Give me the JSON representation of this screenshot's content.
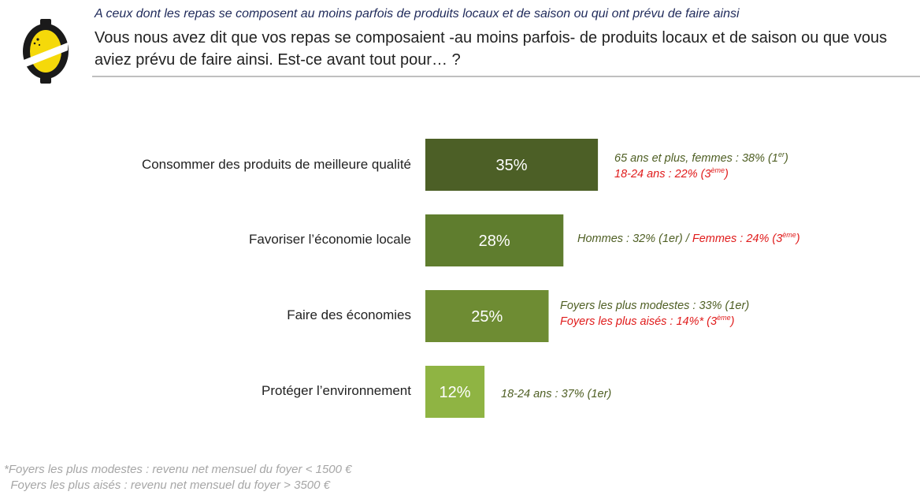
{
  "header": {
    "subtitle": "A ceux dont les repas se composent au moins parfois de produits locaux et de saison ou qui ont prévu de faire ainsi",
    "question": "Vous nous avez dit que vos repas se composaient -au moins parfois- de produits locaux et de saison ou que vous aviez prévu de faire ainsi. Est-ce avant tout pour… ?"
  },
  "logo": {
    "icon": "lemon-logo-icon",
    "colors": {
      "body": "#1a1a1a",
      "fruit": "#f5d90a",
      "band": "#ffffff"
    }
  },
  "colors": {
    "bar_dark": "#4c5f26",
    "bar_mid": "#5f7d2e",
    "bar_light": "#7d9a3a",
    "bar_lightest": "#8fb443",
    "note_dark": "#4f5f24",
    "note_red": "#e01b1b"
  },
  "chart_data": {
    "type": "bar",
    "orientation": "horizontal",
    "categories": [
      "Consommer des produits de meilleure qualité",
      "Favoriser l’économie locale",
      "Faire des économies",
      "Protéger l’environnement"
    ],
    "values": [
      35,
      28,
      25,
      12
    ],
    "value_labels": [
      "35%",
      "28%",
      "25%",
      "12%"
    ],
    "bar_colors": [
      "#4c5f26",
      "#5f7d2e",
      "#6e8c33",
      "#8fb443"
    ],
    "grid": false
  },
  "notes": {
    "n1_line1_main": "65 ans et plus, femmes : 38% (1",
    "n1_line1_sup": "er",
    "n1_line1_end": ")",
    "n1_line2_main": "18-24 ans : 22% (3",
    "n1_line2_sup": "ème",
    "n1_line2_end": ")",
    "n2_part1": "Hommes : 32%  (1er) / ",
    "n2_part2_main": "Femmes : 24% (3",
    "n2_part2_sup": "ème",
    "n2_part2_end": ")",
    "n3_line1": "Foyers les plus modestes : 33% (1er)",
    "n3_line2_main": "Foyers les plus aisés : 14%* (3",
    "n3_line2_sup": "ème",
    "n3_line2_end": ")",
    "n4_line1": "18-24 ans : 37% (1er)"
  },
  "footnote": {
    "line1": "*Foyers les plus modestes : revenu net mensuel du foyer < 1500 €",
    "line2": "  Foyers les plus aisés : revenu net mensuel du foyer > 3500 €"
  }
}
